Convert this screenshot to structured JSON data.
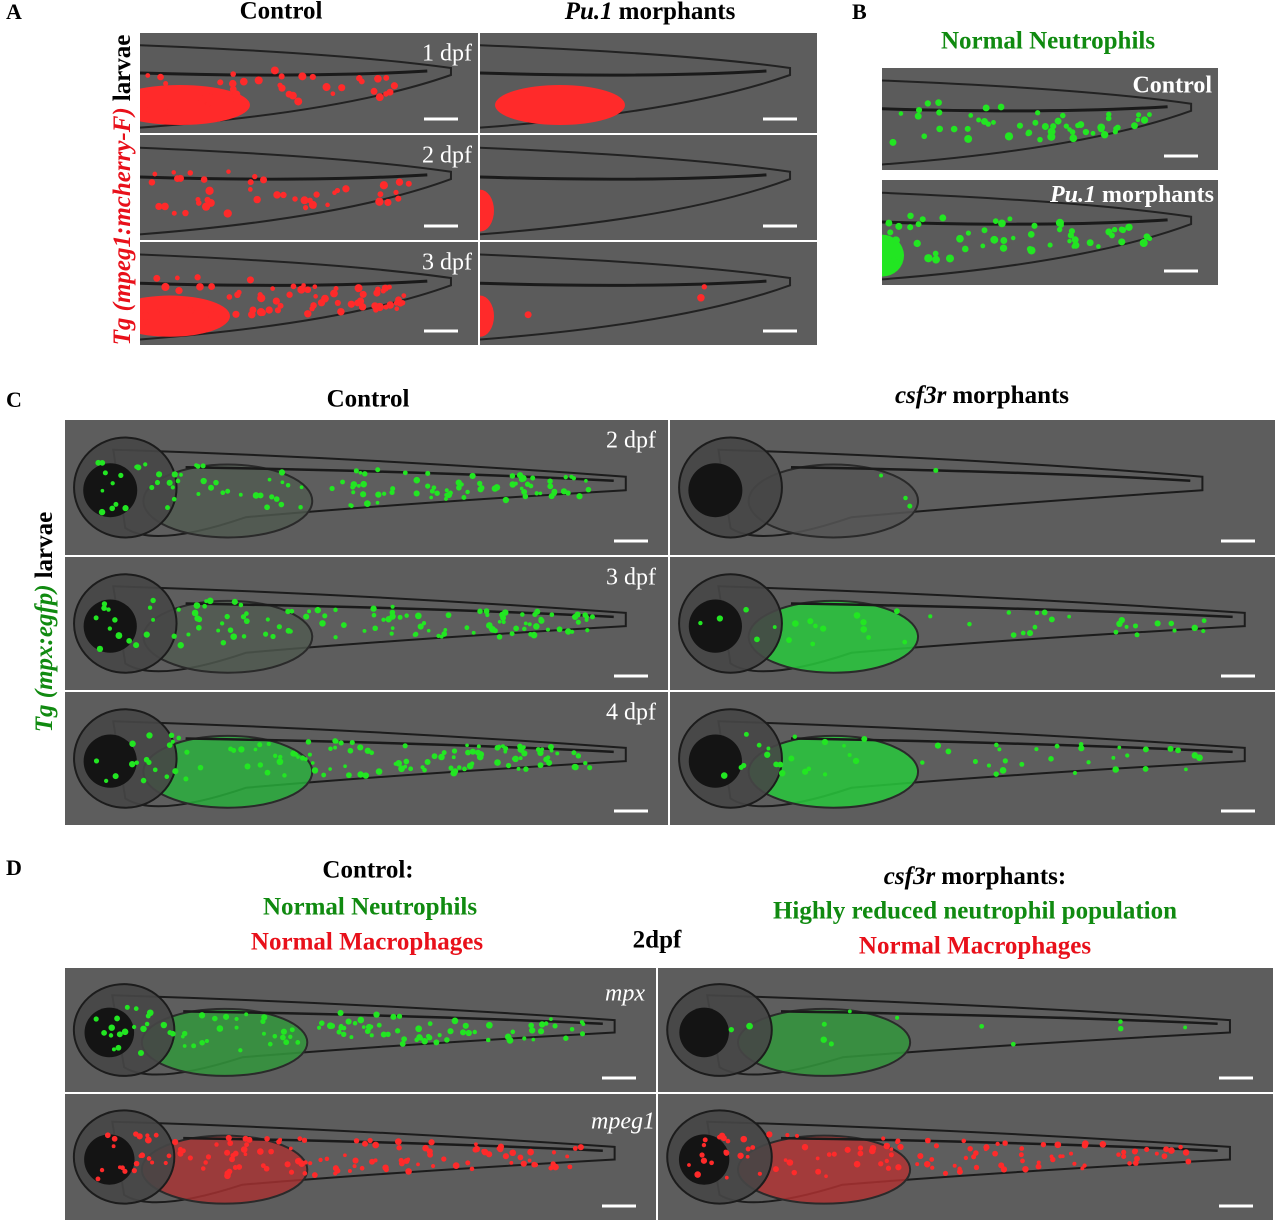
{
  "panel_a": {
    "label": "A",
    "control": "Control",
    "morphant_gene": "Pu.1",
    "morphant_word": "morphants",
    "stages": [
      "1 dpf",
      "2 dpf",
      "3 dpf"
    ],
    "side_label_line": "Tg (mpeg1:mcherry-F)",
    "side_label_word": "larvae"
  },
  "panel_b": {
    "label": "B",
    "title": "Normal Neutrophils",
    "control": "Control",
    "morphant_gene": "Pu.1",
    "morphant_word": "morphants"
  },
  "panel_c": {
    "label": "C",
    "control": "Control",
    "morphant_gene": "csf3r",
    "morphant_word": "morphants",
    "stages": [
      "2 dpf",
      "3 dpf",
      "4 dpf"
    ],
    "side_label_line": "Tg (mpx:egfp)",
    "side_label_word": "larvae"
  },
  "panel_d": {
    "label": "D",
    "control": "Control:",
    "control_neutrophils": "Normal Neutrophils",
    "control_macrophages": "Normal Macrophages",
    "stage": "2dpf",
    "morphant_gene": "csf3r",
    "morphant_word": "morphants:",
    "morphant_neutrophils": "Highly reduced neutrophil population",
    "morphant_macrophages": "Normal Macrophages",
    "channel_green": "mpx",
    "channel_red": "mpeg1"
  }
}
